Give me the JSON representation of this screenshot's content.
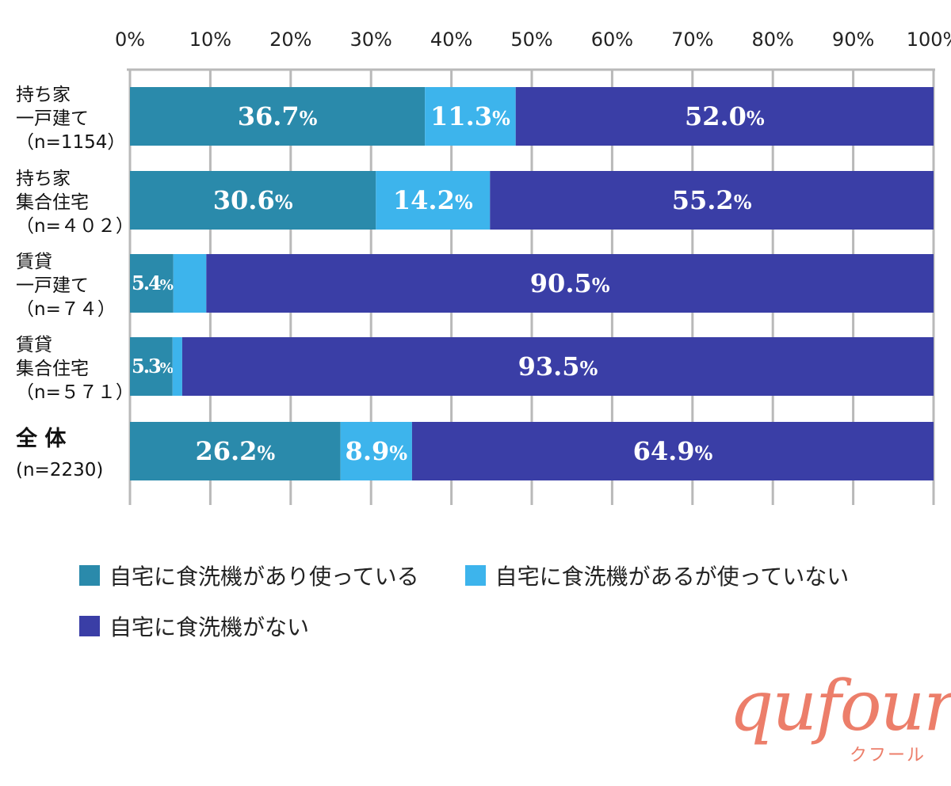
{
  "chart_data": {
    "type": "bar",
    "orientation": "horizontal",
    "stacked": true,
    "xlim": [
      0,
      100
    ],
    "x_ticks": [
      "0%",
      "10%",
      "20%",
      "30%",
      "40%",
      "50%",
      "60%",
      "70%",
      "80%",
      "90%",
      "100%"
    ],
    "grid": true,
    "legend_position": "bottom",
    "categories": [
      [
        "持ち家",
        "一戸建て",
        "（n=1154）"
      ],
      [
        "持ち家",
        "集合住宅",
        "（n=４０２）"
      ],
      [
        "賃貸",
        "一戸建て",
        "（n=７４）"
      ],
      [
        "賃貸",
        "集合住宅",
        "（n=５７１）"
      ],
      [
        "全 体",
        "(n=2230)"
      ]
    ],
    "series": [
      {
        "name": "自宅に食洗機があり使っている",
        "color": "#2a8aab",
        "values": [
          36.7,
          30.6,
          5.4,
          5.3,
          26.2
        ]
      },
      {
        "name": "自宅に食洗機があるが使っていない",
        "color": "#3db4ec",
        "values": [
          11.3,
          14.2,
          4.1,
          1.2,
          8.9
        ]
      },
      {
        "name": "自宅に食洗機がない",
        "color": "#3a3ea6",
        "values": [
          52.0,
          55.2,
          90.5,
          93.5,
          64.9
        ]
      }
    ],
    "value_labels": [
      [
        "36.7",
        "11.3",
        "52.0"
      ],
      [
        "30.6",
        "14.2",
        "55.2"
      ],
      [
        "5.4",
        "4.1",
        "90.5"
      ],
      [
        "5.3",
        "1.2",
        "93.5"
      ],
      [
        "26.2",
        "8.9",
        "64.9"
      ]
    ],
    "percent_sign": "%",
    "callout_arrow": "←",
    "callout_rows": [
      2,
      3
    ]
  },
  "logo": {
    "word": "qufour",
    "kana": "クフール",
    "color": "#ec7e6a"
  }
}
